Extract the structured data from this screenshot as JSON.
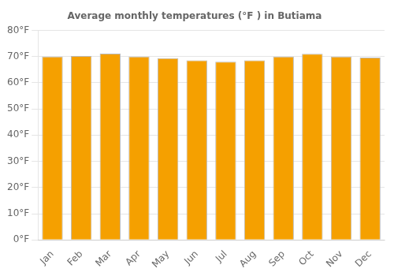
{
  "chart_data": {
    "type": "bar",
    "title": "Average monthly temperatures (°F ) in Butiama",
    "categories": [
      "Jan",
      "Feb",
      "Mar",
      "Apr",
      "May",
      "Jun",
      "Jul",
      "Aug",
      "Sep",
      "Oct",
      "Nov",
      "Dec"
    ],
    "values": [
      70.0,
      70.2,
      71.1,
      70.0,
      69.4,
      68.5,
      68.0,
      68.5,
      70.0,
      71.0,
      70.0,
      69.6
    ],
    "color": "#F5A000",
    "ylim": [
      0,
      80
    ],
    "yticks": [
      {
        "value": 0,
        "label": "0°F"
      },
      {
        "value": 10,
        "label": "10°F"
      },
      {
        "value": 20,
        "label": "20°F"
      },
      {
        "value": 30,
        "label": "30°F"
      },
      {
        "value": 40,
        "label": "40°F"
      },
      {
        "value": 50,
        "label": "50°F"
      },
      {
        "value": 60,
        "label": "60°F"
      },
      {
        "value": 70,
        "label": "70°F"
      },
      {
        "value": 80,
        "label": "80°F"
      }
    ],
    "grid": true
  }
}
